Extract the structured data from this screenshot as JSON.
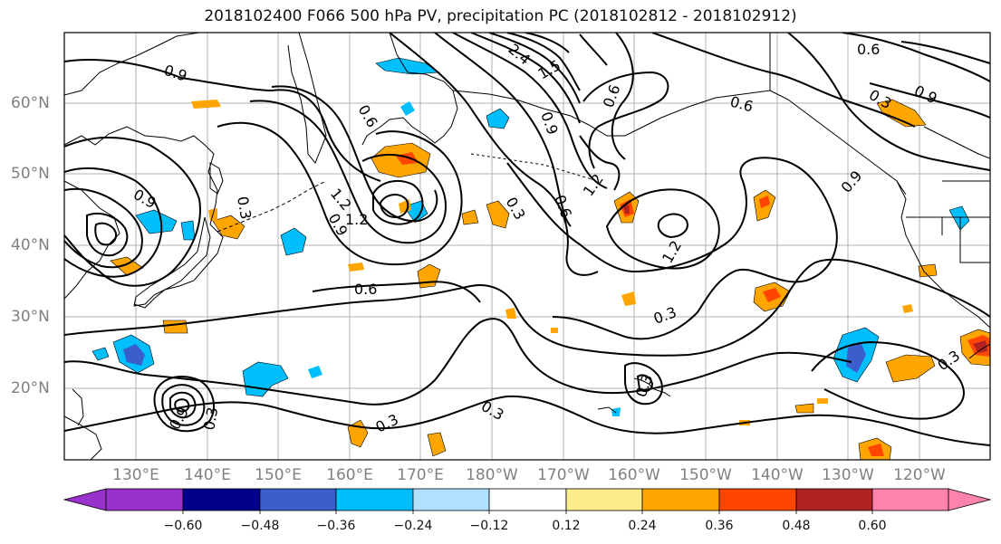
{
  "title": "2018102400 F066 500 hPa PV, precipitation PC (2018102812 - 2018102912)",
  "axes": {
    "lat_labels": [
      "60°N",
      "50°N",
      "40°N",
      "30°N",
      "20°N"
    ],
    "lon_labels": [
      "130°E",
      "140°E",
      "150°E",
      "160°E",
      "170°E",
      "180°W",
      "170°W",
      "160°W",
      "150°W",
      "140°W",
      "130°W",
      "120°W"
    ]
  },
  "contour_labels": [
    "0.9",
    "0.6",
    "0.9",
    "1.2",
    "0.3",
    "0.9",
    "1.2",
    "0.3",
    "0.6",
    "0.9",
    "1.2",
    "1.2",
    "0.6",
    "0.6",
    "0.9",
    "0.9",
    "0.3",
    "0.6",
    "0.3",
    "0.3",
    "0.3",
    "0.3",
    "0.3",
    "0.3",
    "0.9",
    "0.6",
    "1.5",
    "2.4"
  ],
  "colorbar": {
    "ticks": [
      "−0.60",
      "−0.48",
      "−0.36",
      "−0.24",
      "−0.12",
      "0.12",
      "0.24",
      "0.36",
      "0.48",
      "0.60"
    ],
    "colors": {
      "lt_neg_060": "#9932cc",
      "neg_060_048": "#00008b",
      "neg_048_036": "#3a5fcd",
      "neg_036_024": "#00bfff",
      "neg_024_012": "#b0e2ff",
      "neg_012_012": "#ffffff",
      "pos_012_024": "#ffec8b",
      "pos_024_036": "#ffa500",
      "pos_036_048": "#ff4500",
      "pos_048_060": "#b22222",
      "gt_060": "#ff82ab"
    }
  },
  "colors": {
    "contour": "#000000",
    "coast": "#000000",
    "grid": "#b0b0b0",
    "axis_label": "#808080"
  }
}
